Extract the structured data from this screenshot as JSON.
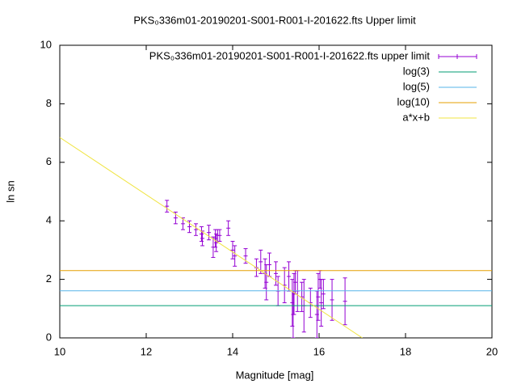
{
  "chart_data": {
    "type": "scatter",
    "title": "PKS₀336m01-20190201-S001-R001-I-201622.fts Upper limit",
    "x_label": "Magnitude [mag]",
    "y_label": "ln sn",
    "xlim": [
      10,
      20
    ],
    "xticks": [
      10,
      12,
      14,
      16,
      18,
      20
    ],
    "ylim": [
      0,
      10
    ],
    "yticks": [
      0,
      2,
      4,
      6,
      8,
      10
    ],
    "legend": "top-right",
    "series": [
      {
        "name": "PKS₀336m01-20190201-S001-R001-I-201622.fts upper limit",
        "style": "errorbars",
        "color": "#9400d3",
        "x": [
          12.48,
          12.68,
          12.85,
          13.0,
          13.15,
          13.28,
          13.3,
          13.45,
          13.55,
          13.6,
          13.62,
          13.65,
          13.7,
          13.9,
          14.0,
          14.05,
          14.3,
          14.55,
          14.65,
          14.75,
          14.78,
          14.85,
          15.0,
          15.05,
          15.2,
          15.3,
          15.38,
          15.4,
          15.42,
          15.45,
          15.5,
          15.6,
          15.65,
          15.8,
          15.95,
          15.98,
          16.02,
          16.05,
          16.1,
          16.3,
          16.6
        ],
        "values": [
          4.5,
          4.1,
          3.9,
          3.8,
          3.7,
          3.55,
          3.4,
          3.6,
          3.1,
          3.4,
          3.25,
          3.5,
          3.5,
          3.75,
          3.0,
          2.8,
          2.8,
          2.4,
          2.6,
          2.2,
          1.9,
          2.5,
          2.2,
          1.6,
          1.8,
          2.1,
          1.2,
          0.8,
          1.5,
          1.9,
          1.6,
          1.4,
          1.1,
          1.2,
          0.8,
          1.4,
          2.0,
          1.2,
          1.5,
          1.3,
          1.25
        ],
        "errors": [
          0.2,
          0.2,
          0.2,
          0.2,
          0.2,
          0.25,
          0.25,
          0.25,
          0.35,
          0.3,
          0.3,
          0.2,
          0.2,
          0.25,
          0.3,
          0.35,
          0.25,
          0.3,
          0.4,
          0.5,
          0.6,
          0.4,
          0.4,
          0.5,
          0.6,
          0.5,
          0.8,
          0.8,
          0.7,
          0.4,
          0.7,
          0.5,
          0.9,
          0.5,
          0.8,
          0.8,
          0.3,
          0.8,
          0.5,
          0.7,
          0.8
        ]
      },
      {
        "name": "log(3)",
        "style": "line",
        "color": "#009e73",
        "x": [
          10,
          20
        ],
        "values": [
          1.1,
          1.1
        ]
      },
      {
        "name": "log(5)",
        "style": "line",
        "color": "#56b4e9",
        "x": [
          10,
          20
        ],
        "values": [
          1.61,
          1.61
        ]
      },
      {
        "name": "log(10)",
        "style": "line",
        "color": "#e69f00",
        "x": [
          10,
          20
        ],
        "values": [
          2.3,
          2.3
        ]
      },
      {
        "name": "a*x+b",
        "style": "line",
        "color": "#f0e442",
        "x": [
          10,
          17
        ],
        "values": [
          6.85,
          0
        ]
      }
    ]
  }
}
